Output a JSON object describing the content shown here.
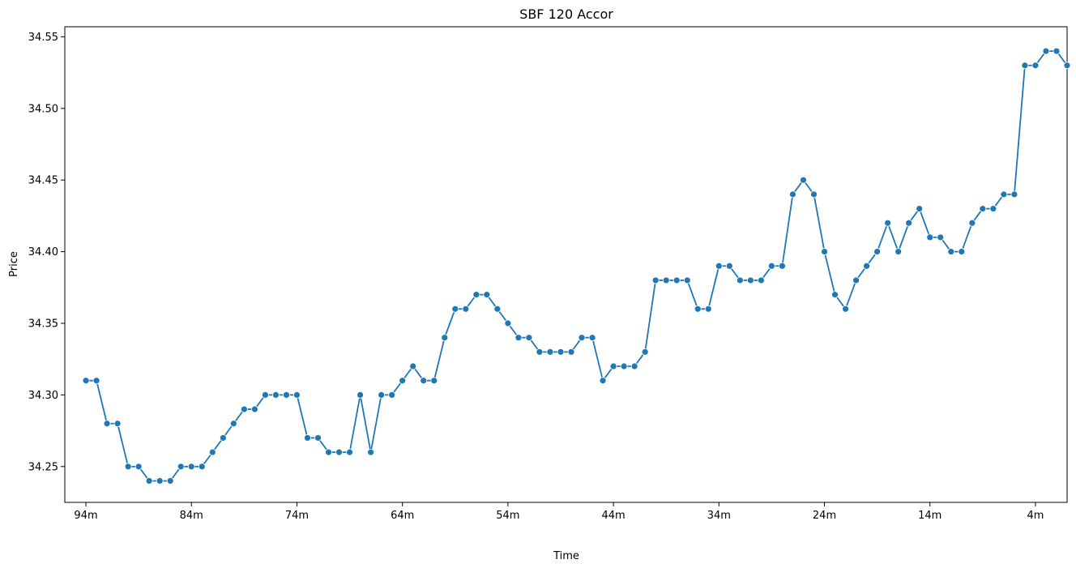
{
  "chart_data": {
    "type": "line",
    "title": "SBF 120 Accor",
    "xlabel": "Time",
    "ylabel": "Price",
    "x_order": "minutes ago, decreasing from left to right",
    "xlim": [
      96,
      1
    ],
    "ylim": [
      34.225,
      34.557
    ],
    "grid": false,
    "x_ticks": [
      94,
      84,
      74,
      64,
      54,
      44,
      34,
      24,
      14,
      4
    ],
    "x_tick_labels": [
      "94m",
      "84m",
      "74m",
      "64m",
      "54m",
      "44m",
      "34m",
      "24m",
      "14m",
      "4m"
    ],
    "y_ticks": [
      34.25,
      34.3,
      34.35,
      34.4,
      34.45,
      34.5,
      34.55
    ],
    "y_tick_labels": [
      "34.25",
      "34.30",
      "34.35",
      "34.40",
      "34.45",
      "34.50",
      "34.55"
    ],
    "series": [
      {
        "color": "#1f77b4",
        "marker": "circle",
        "x": [
          94,
          93,
          92,
          91,
          90,
          89,
          88,
          87,
          86,
          85,
          84,
          83,
          82,
          81,
          80,
          79,
          78,
          77,
          76,
          75,
          74,
          73,
          72,
          71,
          70,
          69,
          68,
          67,
          66,
          65,
          64,
          63,
          62,
          61,
          60,
          59,
          58,
          57,
          56,
          55,
          54,
          53,
          52,
          51,
          50,
          49,
          48,
          47,
          46,
          45,
          44,
          43,
          42,
          41,
          40,
          39,
          38,
          37,
          36,
          35,
          34,
          33,
          32,
          31,
          30,
          29,
          28,
          27,
          26,
          25,
          24,
          23,
          22,
          21,
          20,
          19,
          18,
          17,
          16,
          15,
          14,
          13,
          12,
          11,
          10,
          9,
          8,
          7,
          6,
          5,
          4,
          3,
          2,
          1
        ],
        "values": [
          34.31,
          34.31,
          34.28,
          34.28,
          34.25,
          34.25,
          34.24,
          34.24,
          34.24,
          34.25,
          34.25,
          34.25,
          34.26,
          34.27,
          34.28,
          34.29,
          34.29,
          34.3,
          34.3,
          34.3,
          34.3,
          34.27,
          34.27,
          34.26,
          34.26,
          34.26,
          34.3,
          34.26,
          34.3,
          34.3,
          34.31,
          34.32,
          34.31,
          34.31,
          34.34,
          34.36,
          34.36,
          34.37,
          34.37,
          34.36,
          34.35,
          34.34,
          34.34,
          34.33,
          34.33,
          34.33,
          34.33,
          34.34,
          34.34,
          34.31,
          34.32,
          34.32,
          34.32,
          34.33,
          34.38,
          34.38,
          34.38,
          34.38,
          34.36,
          34.36,
          34.39,
          34.39,
          34.38,
          34.38,
          34.38,
          34.39,
          34.39,
          34.44,
          34.45,
          34.44,
          34.4,
          34.37,
          34.36,
          34.38,
          34.39,
          34.4,
          34.42,
          34.4,
          34.42,
          34.43,
          34.41,
          34.41,
          34.4,
          34.4,
          34.42,
          34.43,
          34.43,
          34.44,
          34.44,
          34.53,
          34.53,
          34.54,
          34.54,
          34.53
        ]
      }
    ]
  }
}
